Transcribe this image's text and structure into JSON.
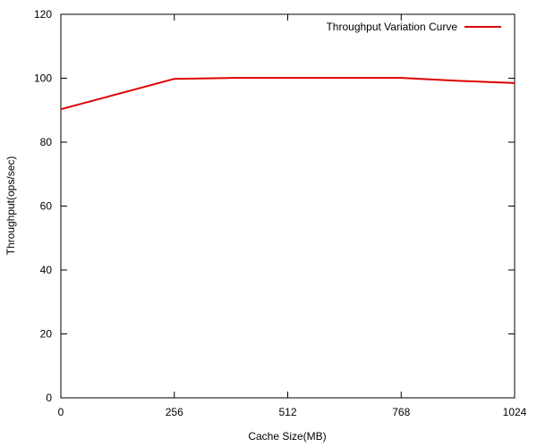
{
  "chart_data": {
    "type": "line",
    "xlabel": "Cache Size(MB)",
    "ylabel": "Throughput(ops/sec)",
    "xlim": [
      0,
      1024
    ],
    "ylim": [
      0,
      120
    ],
    "x_ticks": [
      0,
      256,
      512,
      768,
      1024
    ],
    "y_ticks": [
      0,
      20,
      40,
      60,
      80,
      100,
      120
    ],
    "grid": false,
    "legend_position": "top-right",
    "series": [
      {
        "name": "Throughput Variation Curve",
        "color": "#dd0000",
        "x": [
          0,
          256,
          384,
          512,
          640,
          768,
          896,
          1024
        ],
        "y": [
          90.3,
          99.8,
          100.1,
          100.1,
          100.1,
          100.1,
          99.2,
          98.5
        ]
      }
    ]
  }
}
